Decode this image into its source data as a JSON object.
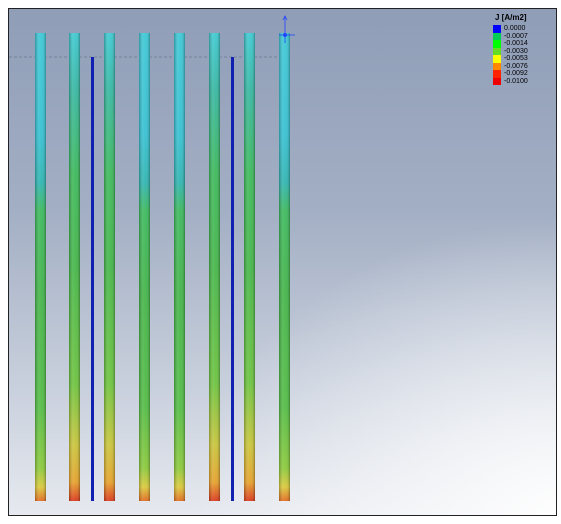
{
  "legend": {
    "title": "J  [A/m2]",
    "entries": [
      {
        "value": "0.0000",
        "color": "#0000ff"
      },
      {
        "value": "-0.0007",
        "color": "#00cc55"
      },
      {
        "value": "-0.0014",
        "color": "#00ff00"
      },
      {
        "value": "-0.0030",
        "color": "#66dd22"
      },
      {
        "value": "-0.0053",
        "color": "#ffff00"
      },
      {
        "value": "-0.0076",
        "color": "#ff8800"
      },
      {
        "value": "-0.0092",
        "color": "#ff2200"
      },
      {
        "value": "-0.0100",
        "color": "#ee0000"
      }
    ]
  },
  "scene": {
    "rods": [
      {
        "type": "anode",
        "count": 8,
        "colors": [
          "#35c3cf",
          "#2fb7b7",
          "#3dbf52",
          "#44b54a",
          "#66c23a",
          "#d8c43a",
          "#e05a1a"
        ]
      },
      {
        "type": "cathode",
        "count": 2,
        "color": "#1020b0"
      }
    ],
    "axis_triad_icon": "axis-triad-icon",
    "accent_colors": {
      "axis_blue": "#2244ff",
      "background_top": "#8f9db7",
      "background_bottom": "#e6e9ef"
    }
  }
}
